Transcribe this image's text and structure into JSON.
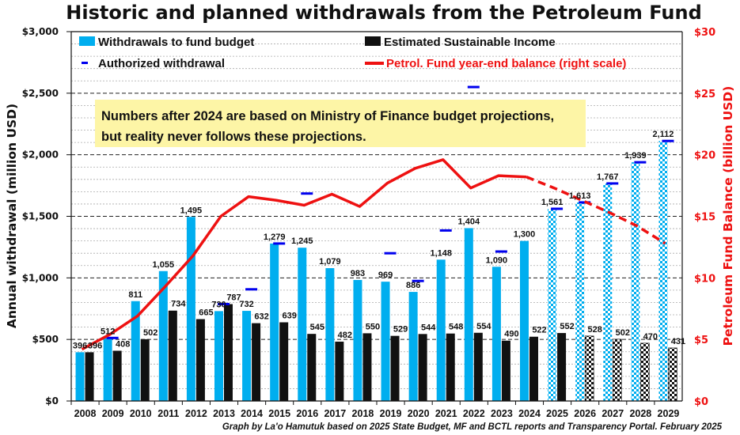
{
  "chart_data": {
    "type": "bar",
    "title": "Historic and planned withdrawals from the Petroleum Fund",
    "xlabel": "",
    "ylabel": "Annual withdrawal (million USD)",
    "ylabel_right": "Petroleum Fund Balance (billion USD)",
    "ylim": [
      0,
      3000
    ],
    "ylim_right": [
      0,
      30
    ],
    "grid": true,
    "yticks": [
      "$0",
      "$500",
      "$1,000",
      "$1,500",
      "$2,000",
      "$2,500",
      "$3,000"
    ],
    "yticks_right": [
      "$0",
      "$5",
      "$10",
      "$15",
      "$20",
      "$25",
      "$30"
    ],
    "categories": [
      "2008",
      "2009",
      "2010",
      "2011",
      "2012",
      "2013",
      "2014",
      "2015",
      "2016",
      "2017",
      "2018",
      "2019",
      "2020",
      "2021",
      "2022",
      "2023",
      "2024",
      "2025",
      "2026",
      "2027",
      "2028",
      "2029"
    ],
    "projection_start": "2025",
    "series": [
      {
        "name": "Withdrawals to fund budget",
        "type": "bar",
        "color": "#00aeef",
        "values": [
          396,
          512,
          811,
          1055,
          1495,
          730,
          732,
          1279,
          1245,
          1079,
          983,
          969,
          886,
          1148,
          1404,
          1090,
          1300,
          1561,
          1613,
          1767,
          1939,
          2112
        ],
        "labels": [
          "396",
          "512",
          "811",
          "1,055",
          "1,495",
          "730",
          "732",
          "1,279",
          "1,245",
          "1,079",
          "983",
          "969",
          "886",
          "1,148",
          "1,404",
          "1,090",
          "1,300",
          "1,561",
          "1,613",
          "1,767",
          "1,939",
          "2,112"
        ]
      },
      {
        "name": "Estimated Sustainable Income",
        "type": "bar",
        "color": "#111111",
        "values": [
          396,
          408,
          502,
          734,
          665,
          787,
          632,
          639,
          545,
          482,
          550,
          529,
          544,
          548,
          554,
          490,
          522,
          552,
          528,
          502,
          470,
          431
        ],
        "labels": [
          "396",
          "408",
          "502",
          "734",
          "665",
          "787",
          "632",
          "639",
          "545",
          "482",
          "550",
          "529",
          "544",
          "548",
          "554",
          "490",
          "522",
          "552",
          "528",
          "502",
          "470",
          "431"
        ]
      },
      {
        "name": "Authorized withdrawal",
        "type": "marker",
        "color": "#0000ee",
        "values": [
          null,
          512,
          null,
          null,
          null,
          787,
          907,
          1279,
          1685,
          null,
          null,
          1200,
          975,
          1385,
          2550,
          1214,
          null,
          1561,
          1613,
          1767,
          1939,
          2112
        ]
      },
      {
        "name": "Petrol. Fund year-end balance (right scale)",
        "type": "line",
        "axis": "right",
        "color": "#ee1111",
        "values": [
          4.2,
          5.4,
          6.9,
          9.3,
          11.8,
          15.0,
          16.6,
          16.3,
          15.9,
          16.8,
          15.8,
          17.7,
          18.9,
          19.6,
          17.3,
          18.3,
          18.2,
          17.3,
          16.3,
          15.3,
          14.2,
          12.8
        ]
      }
    ],
    "legend": {
      "placement": "top",
      "items": [
        {
          "label": "Withdrawals to fund budget"
        },
        {
          "label": "Estimated Sustainable Income"
        },
        {
          "label": "Authorized withdrawal"
        },
        {
          "label": "Petrol. Fund year-end balance (right scale)"
        }
      ]
    },
    "annotations": {
      "note_line1": "Numbers after 2024 are based on Ministry of Finance budget projections,",
      "note_line2": "but reality never follows these projections.",
      "note_bg": "#fdf5a6",
      "credit": "Graph by La'o Hamutuk based on 2025 State Budget, MF and BCTL reports and Transparency Portal. February 2025"
    }
  }
}
